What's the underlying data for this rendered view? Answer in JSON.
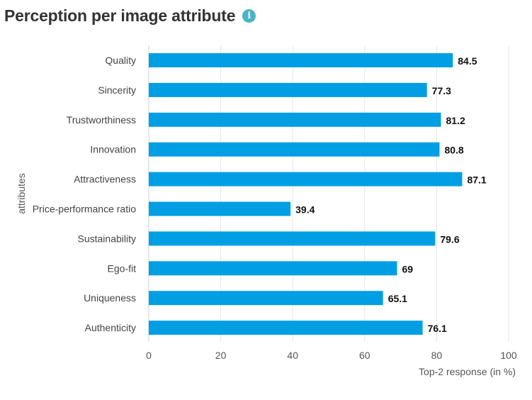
{
  "header": {
    "title": "Perception per image attribute",
    "info_icon": "info-icon"
  },
  "colors": {
    "bar": "#009fe3",
    "grid": "#e6e6e6",
    "axis": "#cccccc",
    "info": "#4bb3c8"
  },
  "chart_data": {
    "type": "bar",
    "orientation": "horizontal",
    "title": "Perception per image attribute",
    "xlabel": "Top-2 response (in %)",
    "ylabel": "attributes",
    "xlim": [
      0,
      100
    ],
    "xticks": [
      0,
      20,
      40,
      60,
      80,
      100
    ],
    "grid": true,
    "categories": [
      "Quality",
      "Sincerity",
      "Trustworthiness",
      "Innovation",
      "Attractiveness",
      "Price-performance ratio",
      "Sustainability",
      "Ego-fit",
      "Uniqueness",
      "Authenticity"
    ],
    "values": [
      84.5,
      77.3,
      81.2,
      80.8,
      87.1,
      39.4,
      79.6,
      69,
      65.1,
      76.1
    ],
    "value_labels": [
      "84.5",
      "77.3",
      "81.2",
      "80.8",
      "87.1",
      "39.4",
      "79.6",
      "69",
      "65.1",
      "76.1"
    ]
  }
}
